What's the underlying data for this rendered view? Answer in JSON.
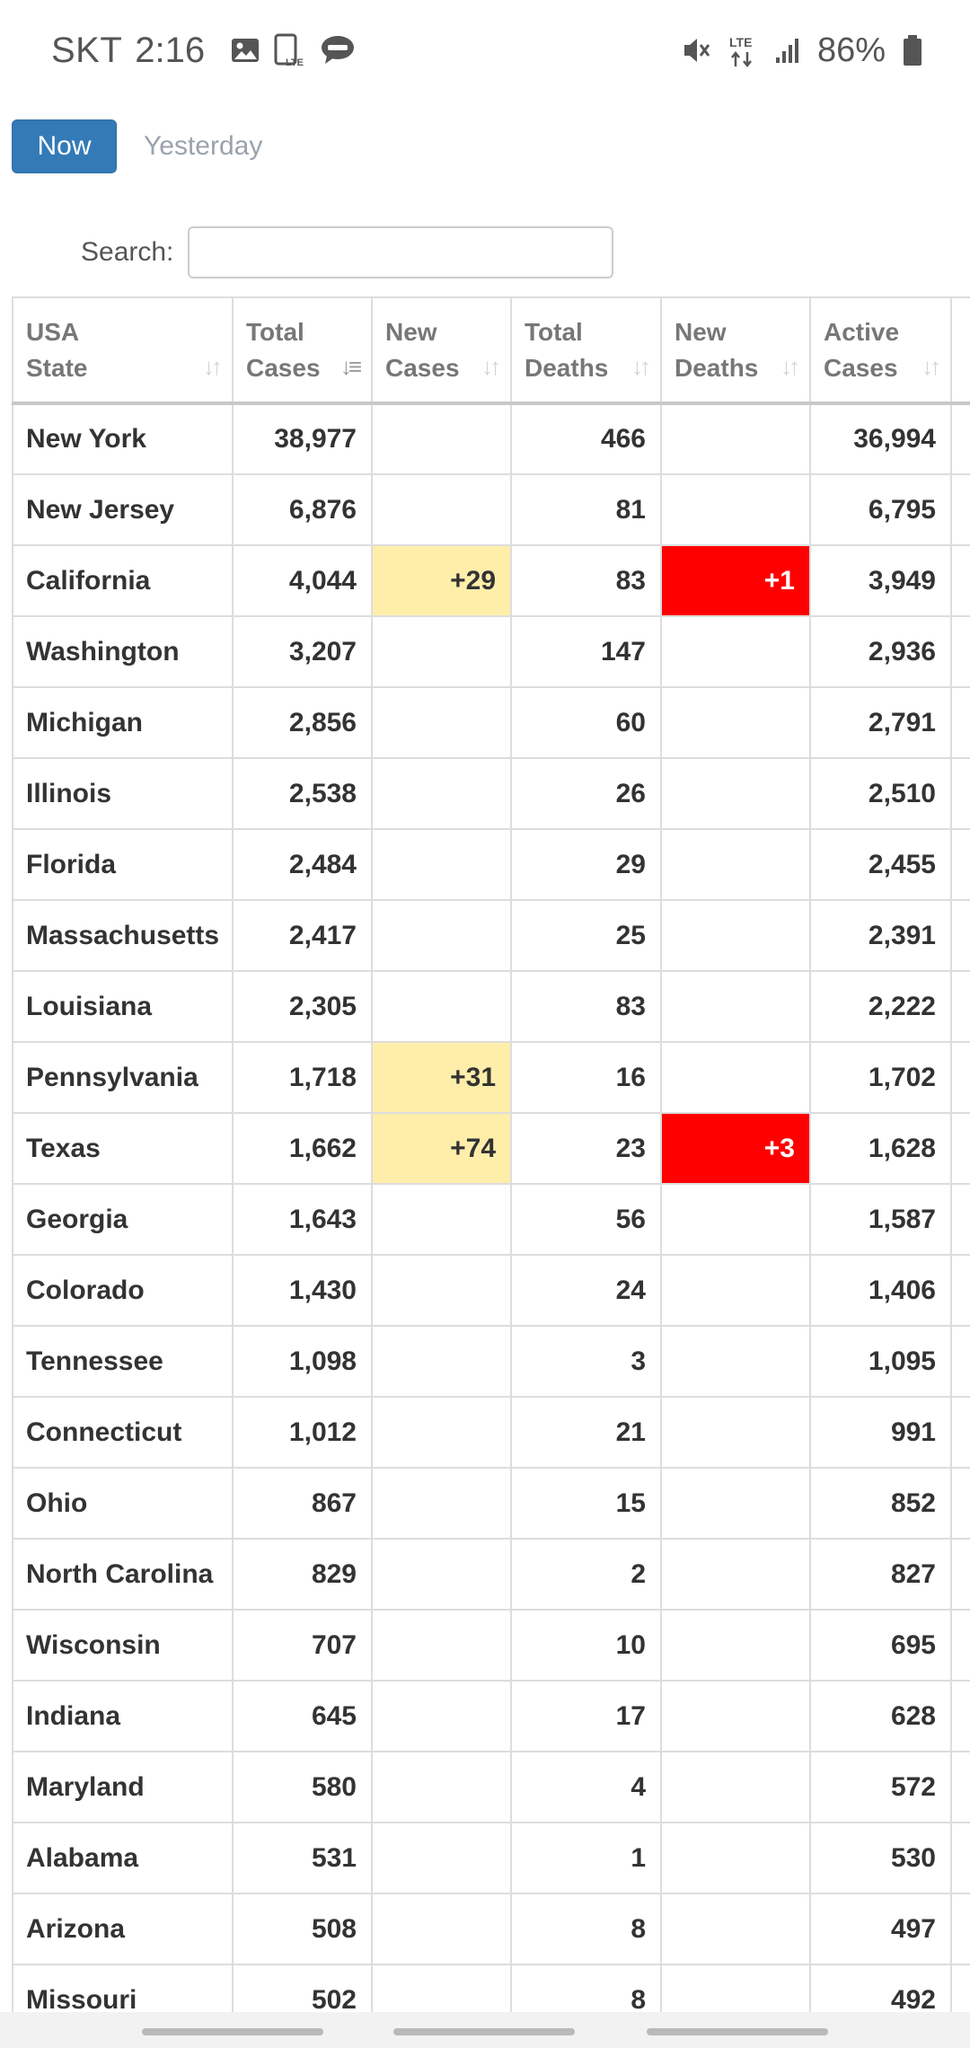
{
  "status_bar": {
    "carrier": "SKT",
    "time": "2:16",
    "notification_icons": [
      "image-icon",
      "lte-phone-icon",
      "talk-icon"
    ],
    "system_icons": [
      "mute-vibrate-icon",
      "lte-data-icon",
      "signal-icon",
      "battery-icon"
    ],
    "lte_label": "LTE",
    "battery_percent": "86%"
  },
  "day_tabs": {
    "now_label": "Now",
    "yesterday_label": "Yesterday",
    "active": "Now"
  },
  "search": {
    "label": "Search:",
    "value": "",
    "placeholder": ""
  },
  "table": {
    "columns": [
      {
        "line1": "USA",
        "line2": "State",
        "sort": "none"
      },
      {
        "line1": "Total",
        "line2": "Cases",
        "sort": "desc"
      },
      {
        "line1": "New",
        "line2": "Cases",
        "sort": "none"
      },
      {
        "line1": "Total",
        "line2": "Deaths",
        "sort": "none"
      },
      {
        "line1": "New",
        "line2": "Deaths",
        "sort": "none"
      },
      {
        "line1": "Active",
        "line2": "Cases",
        "sort": "none"
      }
    ],
    "rows": [
      {
        "state": "New York",
        "total_cases": "38,977",
        "new_cases": "",
        "total_deaths": "466",
        "new_deaths": "",
        "active_cases": "36,994"
      },
      {
        "state": "New Jersey",
        "total_cases": "6,876",
        "new_cases": "",
        "total_deaths": "81",
        "new_deaths": "",
        "active_cases": "6,795"
      },
      {
        "state": "California",
        "total_cases": "4,044",
        "new_cases": "+29",
        "total_deaths": "83",
        "new_deaths": "+1",
        "active_cases": "3,949"
      },
      {
        "state": "Washington",
        "total_cases": "3,207",
        "new_cases": "",
        "total_deaths": "147",
        "new_deaths": "",
        "active_cases": "2,936"
      },
      {
        "state": "Michigan",
        "total_cases": "2,856",
        "new_cases": "",
        "total_deaths": "60",
        "new_deaths": "",
        "active_cases": "2,791"
      },
      {
        "state": "Illinois",
        "total_cases": "2,538",
        "new_cases": "",
        "total_deaths": "26",
        "new_deaths": "",
        "active_cases": "2,510"
      },
      {
        "state": "Florida",
        "total_cases": "2,484",
        "new_cases": "",
        "total_deaths": "29",
        "new_deaths": "",
        "active_cases": "2,455"
      },
      {
        "state": "Massachusetts",
        "total_cases": "2,417",
        "new_cases": "",
        "total_deaths": "25",
        "new_deaths": "",
        "active_cases": "2,391"
      },
      {
        "state": "Louisiana",
        "total_cases": "2,305",
        "new_cases": "",
        "total_deaths": "83",
        "new_deaths": "",
        "active_cases": "2,222"
      },
      {
        "state": "Pennsylvania",
        "total_cases": "1,718",
        "new_cases": "+31",
        "total_deaths": "16",
        "new_deaths": "",
        "active_cases": "1,702"
      },
      {
        "state": "Texas",
        "total_cases": "1,662",
        "new_cases": "+74",
        "total_deaths": "23",
        "new_deaths": "+3",
        "active_cases": "1,628"
      },
      {
        "state": "Georgia",
        "total_cases": "1,643",
        "new_cases": "",
        "total_deaths": "56",
        "new_deaths": "",
        "active_cases": "1,587"
      },
      {
        "state": "Colorado",
        "total_cases": "1,430",
        "new_cases": "",
        "total_deaths": "24",
        "new_deaths": "",
        "active_cases": "1,406"
      },
      {
        "state": "Tennessee",
        "total_cases": "1,098",
        "new_cases": "",
        "total_deaths": "3",
        "new_deaths": "",
        "active_cases": "1,095"
      },
      {
        "state": "Connecticut",
        "total_cases": "1,012",
        "new_cases": "",
        "total_deaths": "21",
        "new_deaths": "",
        "active_cases": "991"
      },
      {
        "state": "Ohio",
        "total_cases": "867",
        "new_cases": "",
        "total_deaths": "15",
        "new_deaths": "",
        "active_cases": "852"
      },
      {
        "state": "North Carolina",
        "total_cases": "829",
        "new_cases": "",
        "total_deaths": "2",
        "new_deaths": "",
        "active_cases": "827"
      },
      {
        "state": "Wisconsin",
        "total_cases": "707",
        "new_cases": "",
        "total_deaths": "10",
        "new_deaths": "",
        "active_cases": "695"
      },
      {
        "state": "Indiana",
        "total_cases": "645",
        "new_cases": "",
        "total_deaths": "17",
        "new_deaths": "",
        "active_cases": "628"
      },
      {
        "state": "Maryland",
        "total_cases": "580",
        "new_cases": "",
        "total_deaths": "4",
        "new_deaths": "",
        "active_cases": "572"
      },
      {
        "state": "Alabama",
        "total_cases": "531",
        "new_cases": "",
        "total_deaths": "1",
        "new_deaths": "",
        "active_cases": "530"
      },
      {
        "state": "Arizona",
        "total_cases": "508",
        "new_cases": "",
        "total_deaths": "8",
        "new_deaths": "",
        "active_cases": "497"
      },
      {
        "state": "Missouri",
        "total_cases": "502",
        "new_cases": "",
        "total_deaths": "8",
        "new_deaths": "",
        "active_cases": "492"
      }
    ]
  },
  "colors": {
    "button_primary": "#337ab7",
    "new_cases_highlight": "#ffeeaa",
    "new_deaths_highlight": "#ff0000",
    "muted_text": "#9aa3ad"
  },
  "nav_bar": {
    "pills": [
      "nav-back-pill",
      "nav-home-pill",
      "nav-recents-pill"
    ]
  }
}
